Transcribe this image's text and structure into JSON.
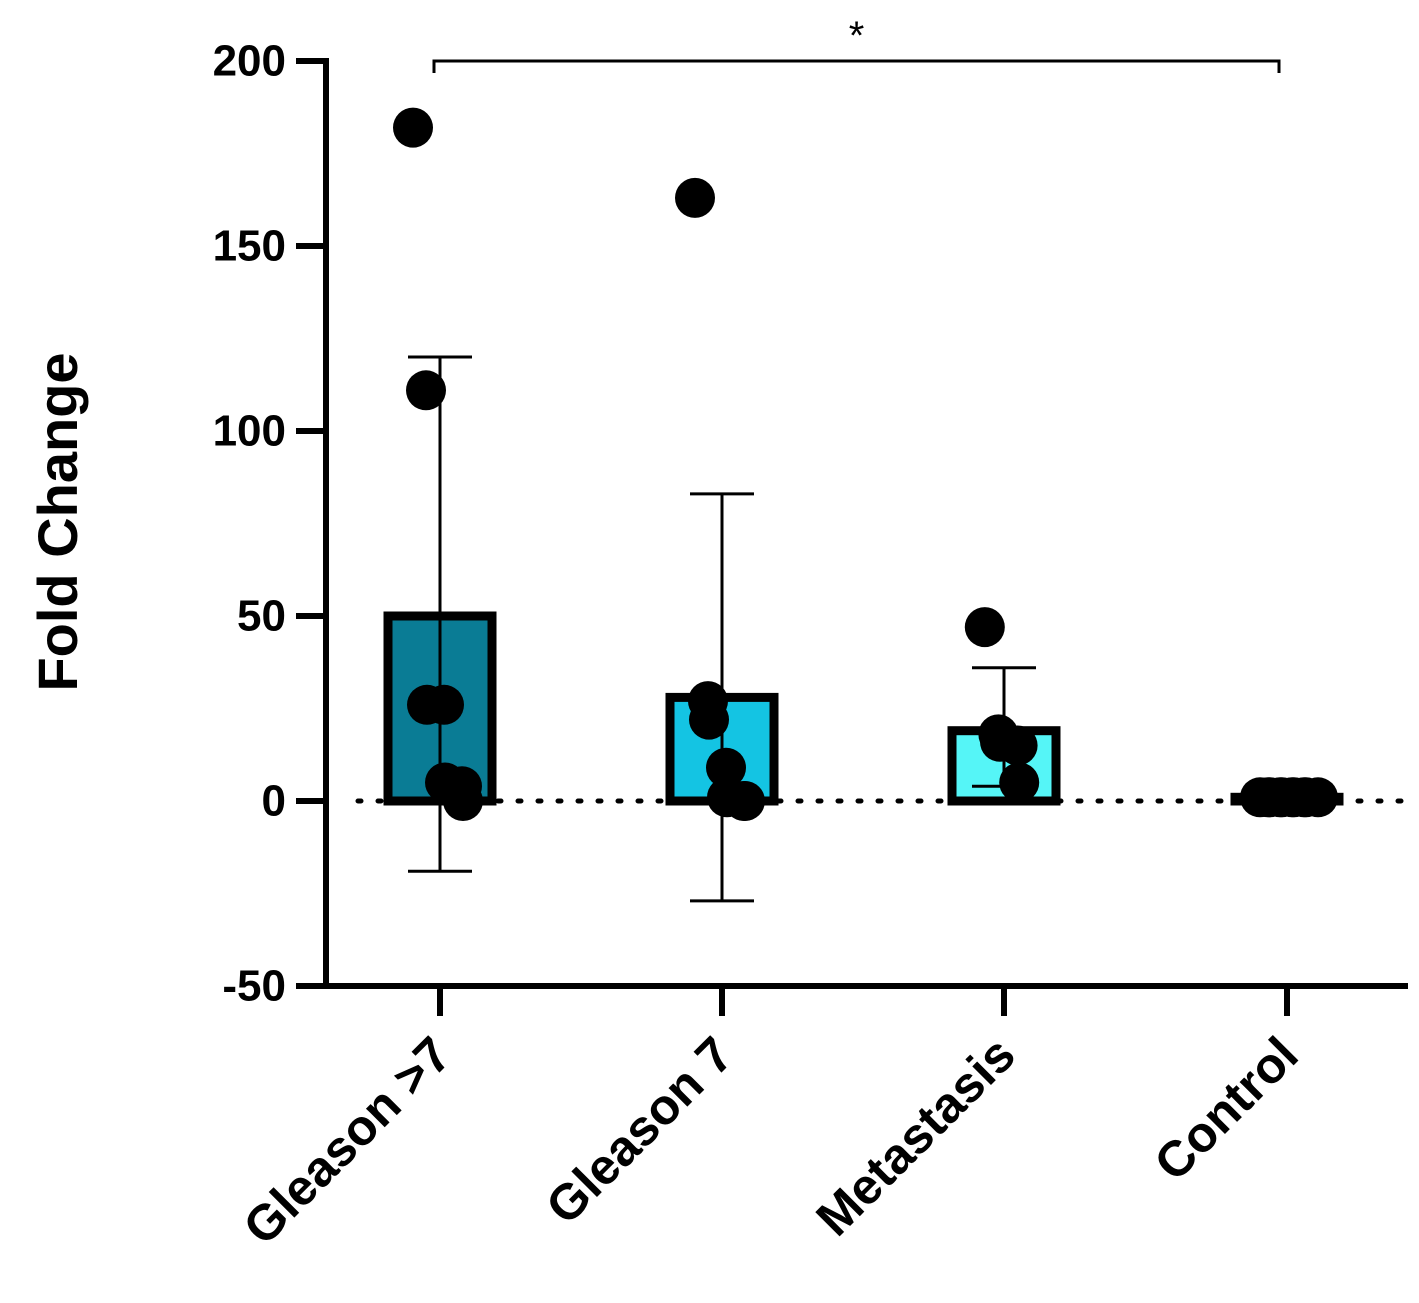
{
  "chart_data": {
    "type": "bar",
    "title": "",
    "xlabel": "",
    "ylabel": "Fold Change",
    "ylim": [
      -50,
      200
    ],
    "yticks": [
      -50,
      0,
      50,
      100,
      150,
      200
    ],
    "yticks_text": [
      "-50",
      "0",
      "50",
      "100",
      "150",
      "200"
    ],
    "grid": false,
    "reference_line": {
      "y": 0,
      "style": "dotted"
    },
    "categories": [
      "Gleason >7",
      "Gleason 7",
      "Metastasis",
      "Control"
    ],
    "series": [
      {
        "name": "Fold Change",
        "values": [
          50,
          28,
          19,
          1
        ],
        "error": [
          {
            "low": -19,
            "high": 120
          },
          {
            "low": -27,
            "high": 83
          },
          {
            "low": 4,
            "high": 36
          },
          {
            "low": 1,
            "high": 1
          }
        ],
        "colors": [
          "#0a7c95",
          "#14c4e3",
          "#55f5f7",
          "#ffffff"
        ],
        "points": [
          [
            182,
            111,
            26,
            26,
            5,
            4,
            0
          ],
          [
            163,
            27,
            22,
            9,
            1,
            0,
            0
          ],
          [
            47,
            18,
            16,
            15,
            5
          ],
          [
            1,
            1,
            1,
            1,
            1,
            1,
            1,
            1,
            1,
            1
          ]
        ]
      }
    ],
    "annotations": [
      {
        "from": "Gleason >7",
        "to": "Control",
        "y": 200,
        "text": "*"
      }
    ]
  }
}
